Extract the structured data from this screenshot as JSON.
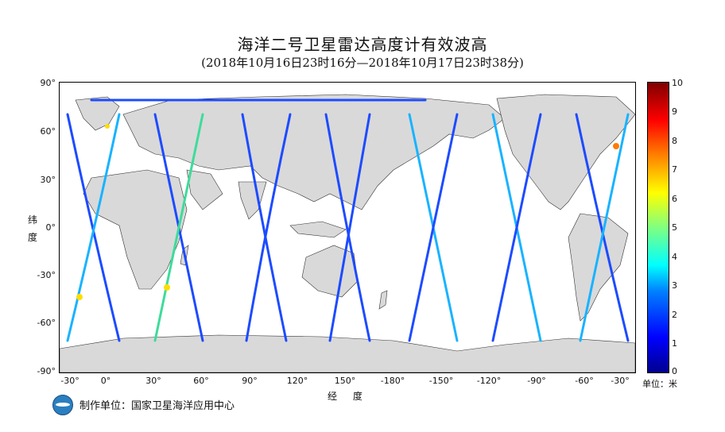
{
  "title": "海洋二号卫星雷达高度计有效波高",
  "subtitle": "(2018年10月16日23时16分—2018年10月17日23时38分)",
  "y_ticks": [
    "90°",
    "60°",
    "30°",
    "0°",
    "-30°",
    "-60°",
    "-90°"
  ],
  "x_ticks": [
    "-30°",
    "0°",
    "30°",
    "60°",
    "90°",
    "120°",
    "150°",
    "-180°",
    "-150°",
    "-120°",
    "-90°",
    "-60°",
    "-30°"
  ],
  "y_axis_label_1": "纬",
  "y_axis_label_2": "度",
  "x_axis_label": "经 度",
  "colorbar": {
    "ticks": [
      "10",
      "9",
      "8",
      "7",
      "6",
      "5",
      "4",
      "3",
      "2",
      "1",
      "0"
    ],
    "unit": "单位：米"
  },
  "producer": "制作单位：国家卫星海洋应用中心",
  "colors": {
    "land": "#d9d9d9",
    "ocean": "#ffffff",
    "track_low": "#0033ff",
    "track_mid": "#00ccff",
    "track_high": "#ffdd00"
  }
}
